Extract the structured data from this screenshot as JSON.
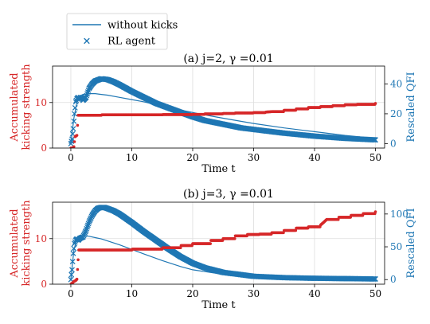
{
  "legend": {
    "items": [
      {
        "label": "without kicks",
        "marker": "line"
      },
      {
        "label": "RL agent",
        "marker": "x"
      }
    ]
  },
  "colors": {
    "kicks": "#d62728",
    "qfi": "#1f77b4",
    "axis": "#000000",
    "grid": "#dddddd"
  },
  "chart_data": [
    {
      "type": "line",
      "title": "(a) j=2, γ =0.01",
      "xlabel": "Time t",
      "ylabel_left": "Accumulated kicking strength",
      "ylabel_right": "Rescaled QFI",
      "xlim": [
        -3.0,
        51.5
      ],
      "ylim_left": [
        0,
        18
      ],
      "ylim_right": [
        -3,
        52
      ],
      "xticks": [
        0,
        10,
        20,
        30,
        40,
        50
      ],
      "yticks_left": [
        0,
        10
      ],
      "yticks_right": [
        0,
        20,
        40
      ],
      "grid": true,
      "series": [
        {
          "name": "without kicks",
          "axis": "right",
          "style": "line",
          "x": [
            0,
            0.5,
            1,
            1.5,
            2,
            3,
            4,
            5,
            6,
            8,
            10,
            12,
            15,
            18,
            21,
            25,
            30,
            35,
            40,
            45,
            50
          ],
          "y": [
            0,
            17,
            28,
            32,
            33,
            33.5,
            33.5,
            33,
            32.5,
            31,
            29.5,
            28,
            25,
            22.5,
            20,
            17,
            13.5,
            10.5,
            8,
            5.5,
            3.5
          ]
        },
        {
          "name": "RL agent",
          "axis": "right",
          "style": "x",
          "x": [
            0,
            0.2,
            0.4,
            0.6,
            0.8,
            1.0,
            1.2,
            1.4,
            1.6,
            1.8,
            2.0,
            2.5,
            3,
            3.5,
            4,
            5,
            6,
            7,
            8,
            10,
            12,
            14,
            16,
            18,
            20,
            22,
            25,
            28,
            30,
            35,
            40,
            45,
            50
          ],
          "y": [
            0,
            3,
            10,
            20,
            28,
            30,
            31,
            30,
            31,
            30.5,
            29,
            31,
            37,
            40,
            42,
            43.5,
            43,
            41.5,
            39.5,
            35,
            31,
            27,
            24,
            21,
            18,
            15.5,
            13,
            10.5,
            9.5,
            7,
            5,
            3.5,
            2.5
          ]
        },
        {
          "name": "Accumulated kicking strength",
          "axis": "left",
          "style": "markers",
          "x": [
            0,
            0.3,
            0.5,
            0.7,
            1.0,
            1.2,
            5,
            10,
            15,
            20,
            22,
            25,
            27,
            30,
            32,
            33,
            35,
            37,
            39,
            41,
            43,
            45,
            47,
            50
          ],
          "y": [
            0,
            0,
            0.3,
            2.5,
            2.8,
            7.2,
            7.3,
            7.3,
            7.35,
            7.4,
            7.5,
            7.6,
            7.7,
            7.8,
            7.9,
            8.0,
            8.3,
            8.6,
            8.9,
            9.1,
            9.3,
            9.5,
            9.6,
            9.8
          ]
        }
      ]
    },
    {
      "type": "line",
      "title": "(b) j=3, γ =0.01",
      "xlabel": "Time t",
      "ylabel_left": "Accumulated kicking strength",
      "ylabel_right": "Rescaled QFI",
      "xlim": [
        -3.0,
        51.5
      ],
      "ylim_left": [
        0,
        18
      ],
      "ylim_right": [
        -7,
        118
      ],
      "xticks": [
        0,
        10,
        20,
        30,
        40,
        50
      ],
      "yticks_left": [
        0,
        10
      ],
      "yticks_right": [
        0,
        50,
        100
      ],
      "grid": true,
      "series": [
        {
          "name": "without kicks",
          "axis": "right",
          "style": "line",
          "x": [
            0,
            0.5,
            1,
            1.5,
            2,
            3,
            4,
            5,
            6,
            8,
            10,
            12,
            15,
            18,
            20,
            25,
            30,
            35,
            40,
            45,
            50
          ],
          "y": [
            0,
            45,
            63,
            67,
            67,
            66,
            64,
            62,
            59,
            53,
            46,
            39,
            29,
            20,
            15,
            8,
            4,
            2.5,
            1.5,
            1,
            1
          ]
        },
        {
          "name": "RL agent",
          "axis": "right",
          "style": "x",
          "x": [
            0,
            0.2,
            0.4,
            0.6,
            0.8,
            1.0,
            1.2,
            1.5,
            2.0,
            2.5,
            3,
            3.5,
            4,
            4.5,
            5,
            5.5,
            6,
            7,
            8,
            10,
            12,
            14,
            16,
            18,
            20,
            22,
            25,
            30,
            35,
            40,
            45,
            50
          ],
          "y": [
            0,
            15,
            40,
            55,
            60,
            62,
            60,
            63,
            65,
            75,
            88,
            98,
            105,
            109,
            110,
            110,
            108.5,
            105,
            100,
            87,
            73,
            60,
            47,
            35,
            25,
            18,
            11,
            5,
            3,
            2,
            1.5,
            1
          ]
        },
        {
          "name": "Accumulated kicking strength",
          "axis": "left",
          "style": "markers",
          "x": [
            0,
            0.3,
            0.5,
            0.8,
            1.0,
            1.3,
            5,
            10,
            15,
            18,
            20,
            23,
            25,
            27,
            29,
            31,
            33,
            35,
            37,
            39,
            41,
            42,
            44,
            46,
            48,
            50
          ],
          "y": [
            0,
            0.3,
            0.6,
            0.8,
            1.1,
            7.5,
            7.5,
            7.7,
            8.0,
            8.5,
            8.9,
            9.6,
            10.0,
            10.6,
            10.9,
            11.0,
            11.3,
            11.8,
            12.3,
            12.6,
            13.0,
            14.2,
            14.7,
            15.1,
            15.5,
            15.9
          ]
        }
      ]
    }
  ]
}
